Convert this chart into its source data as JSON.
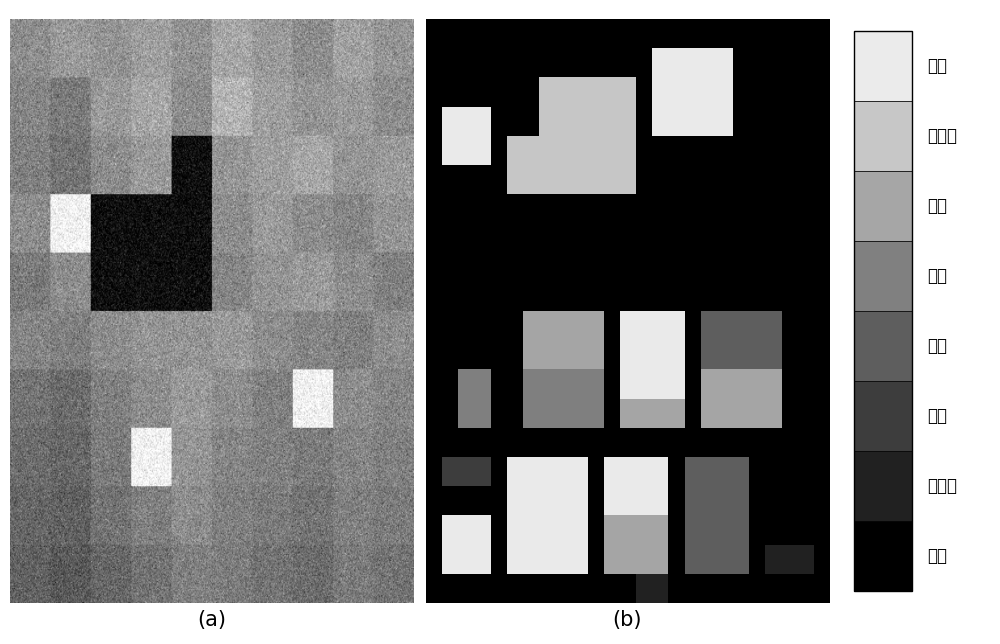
{
  "labels": [
    "燕麦",
    "油菜籽",
    "小麦",
    "玉米",
    "大豆",
    "草料",
    "阔叶林",
    "未知"
  ],
  "label_a": "(a)",
  "label_b": "(b)",
  "bg_color": "#ffffff",
  "figure_width": 10.0,
  "figure_height": 6.44,
  "bar_grays": [
    0.92,
    0.78,
    0.65,
    0.5,
    0.37,
    0.24,
    0.13,
    0.0
  ],
  "cmap_grays": [
    0.0,
    0.92,
    0.78,
    0.65,
    0.5,
    0.37,
    0.24,
    0.13
  ],
  "classification_map": [
    [
      0,
      0,
      0,
      0,
      0,
      0,
      0,
      0,
      0,
      0,
      0,
      0,
      0,
      0,
      0,
      0,
      0,
      0,
      0,
      0,
      0,
      0,
      0,
      0,
      0
    ],
    [
      0,
      0,
      0,
      0,
      0,
      0,
      0,
      0,
      0,
      0,
      0,
      0,
      0,
      0,
      1,
      1,
      1,
      1,
      1,
      0,
      0,
      0,
      0,
      0,
      0
    ],
    [
      0,
      0,
      0,
      0,
      0,
      0,
      0,
      2,
      2,
      2,
      2,
      2,
      2,
      0,
      1,
      1,
      1,
      1,
      1,
      0,
      0,
      0,
      0,
      0,
      0
    ],
    [
      0,
      1,
      1,
      1,
      0,
      0,
      0,
      2,
      2,
      2,
      2,
      2,
      2,
      0,
      1,
      1,
      1,
      1,
      1,
      0,
      0,
      0,
      0,
      0,
      0
    ],
    [
      0,
      1,
      1,
      1,
      0,
      2,
      2,
      2,
      2,
      2,
      2,
      2,
      2,
      0,
      0,
      0,
      0,
      0,
      0,
      0,
      0,
      0,
      0,
      0,
      0
    ],
    [
      0,
      0,
      0,
      0,
      0,
      2,
      2,
      2,
      2,
      2,
      2,
      2,
      2,
      0,
      0,
      0,
      0,
      0,
      0,
      0,
      0,
      0,
      0,
      0,
      0
    ],
    [
      0,
      0,
      0,
      0,
      0,
      0,
      0,
      0,
      0,
      0,
      0,
      0,
      0,
      0,
      0,
      0,
      0,
      0,
      0,
      0,
      0,
      0,
      0,
      0,
      0
    ],
    [
      0,
      0,
      0,
      0,
      0,
      0,
      0,
      0,
      0,
      0,
      0,
      0,
      0,
      0,
      0,
      0,
      0,
      0,
      0,
      0,
      0,
      0,
      0,
      0,
      0
    ],
    [
      0,
      0,
      0,
      0,
      0,
      0,
      0,
      0,
      0,
      0,
      0,
      0,
      0,
      0,
      0,
      0,
      0,
      0,
      0,
      0,
      0,
      0,
      0,
      0,
      0
    ],
    [
      0,
      0,
      0,
      0,
      0,
      0,
      0,
      0,
      0,
      0,
      0,
      0,
      0,
      0,
      0,
      0,
      0,
      0,
      0,
      0,
      0,
      0,
      0,
      0,
      0
    ],
    [
      0,
      0,
      0,
      0,
      0,
      0,
      3,
      3,
      3,
      3,
      3,
      0,
      1,
      1,
      1,
      1,
      0,
      5,
      5,
      5,
      5,
      5,
      0,
      0,
      0
    ],
    [
      0,
      0,
      0,
      0,
      0,
      0,
      3,
      3,
      3,
      3,
      3,
      0,
      1,
      1,
      1,
      1,
      0,
      5,
      5,
      5,
      5,
      5,
      0,
      0,
      0
    ],
    [
      0,
      0,
      4,
      4,
      0,
      0,
      4,
      4,
      4,
      4,
      4,
      0,
      1,
      1,
      1,
      1,
      0,
      3,
      3,
      3,
      3,
      3,
      0,
      0,
      0
    ],
    [
      0,
      0,
      4,
      4,
      0,
      0,
      4,
      4,
      4,
      4,
      4,
      0,
      3,
      3,
      3,
      3,
      0,
      3,
      3,
      3,
      3,
      3,
      0,
      0,
      0
    ],
    [
      0,
      0,
      0,
      0,
      0,
      0,
      0,
      0,
      0,
      0,
      0,
      0,
      0,
      0,
      0,
      0,
      0,
      0,
      0,
      0,
      0,
      0,
      0,
      0,
      0
    ],
    [
      0,
      6,
      6,
      6,
      0,
      1,
      1,
      1,
      1,
      1,
      0,
      1,
      1,
      1,
      1,
      0,
      5,
      5,
      5,
      5,
      0,
      0,
      0,
      0,
      0
    ],
    [
      0,
      0,
      0,
      0,
      0,
      1,
      1,
      1,
      1,
      1,
      0,
      1,
      1,
      1,
      1,
      0,
      5,
      5,
      5,
      5,
      0,
      0,
      0,
      0,
      0
    ],
    [
      0,
      1,
      1,
      1,
      0,
      1,
      1,
      1,
      1,
      1,
      0,
      3,
      3,
      3,
      3,
      0,
      5,
      5,
      5,
      5,
      0,
      0,
      0,
      0,
      0
    ],
    [
      0,
      1,
      1,
      1,
      0,
      1,
      1,
      1,
      1,
      1,
      0,
      3,
      3,
      3,
      3,
      0,
      5,
      5,
      5,
      5,
      0,
      7,
      7,
      7,
      0
    ],
    [
      0,
      0,
      0,
      0,
      0,
      0,
      0,
      0,
      0,
      0,
      0,
      0,
      0,
      7,
      7,
      0,
      0,
      0,
      0,
      0,
      0,
      0,
      0,
      0,
      0
    ]
  ],
  "sar_noise_seed": 17,
  "sar_blocks": [
    [
      0.55,
      0.6,
      0.58,
      0.62,
      0.57,
      0.65,
      0.6,
      0.55,
      0.63,
      0.58
    ],
    [
      0.52,
      0.48,
      0.6,
      0.65,
      0.55,
      0.7,
      0.62,
      0.58,
      0.6,
      0.55
    ],
    [
      0.5,
      0.45,
      0.55,
      0.6,
      0.05,
      0.58,
      0.62,
      0.65,
      0.58,
      0.6
    ],
    [
      0.55,
      0.95,
      0.05,
      0.05,
      0.05,
      0.55,
      0.6,
      0.55,
      0.52,
      0.58
    ],
    [
      0.48,
      0.55,
      0.05,
      0.05,
      0.05,
      0.52,
      0.58,
      0.6,
      0.55,
      0.5
    ],
    [
      0.52,
      0.5,
      0.55,
      0.58,
      0.58,
      0.6,
      0.55,
      0.52,
      0.5,
      0.55
    ],
    [
      0.45,
      0.42,
      0.5,
      0.55,
      0.6,
      0.55,
      0.5,
      0.95,
      0.55,
      0.52
    ],
    [
      0.42,
      0.4,
      0.48,
      0.95,
      0.58,
      0.52,
      0.5,
      0.48,
      0.52,
      0.5
    ],
    [
      0.4,
      0.38,
      0.45,
      0.5,
      0.55,
      0.5,
      0.48,
      0.45,
      0.5,
      0.48
    ],
    [
      0.38,
      0.35,
      0.4,
      0.45,
      0.5,
      0.48,
      0.45,
      0.42,
      0.48,
      0.45
    ]
  ]
}
